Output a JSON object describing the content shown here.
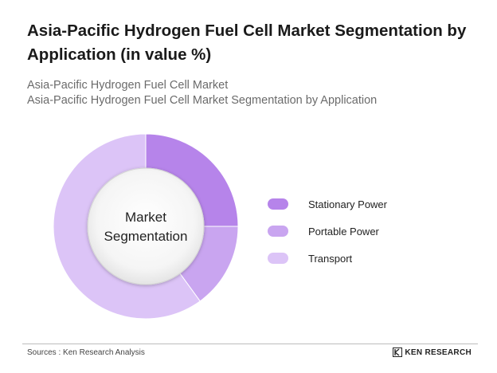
{
  "header": {
    "title": "Asia-Pacific Hydrogen Fuel Cell Market Segmentation by Application (in value %)",
    "subtitle_1": "Asia-Pacific Hydrogen Fuel Cell Market",
    "subtitle_2": "Asia-Pacific Hydrogen Fuel Cell Market Segmentation by Application"
  },
  "chart_data": {
    "type": "pie",
    "variant": "donut",
    "center_label": [
      "Market",
      "Segmentation"
    ],
    "categories": [
      "Stationary Power",
      "Portable Power",
      "Transport"
    ],
    "values": [
      25,
      15,
      60
    ],
    "colors": [
      "#b684ea",
      "#c9a5f0",
      "#dcc4f7"
    ],
    "legend_position": "right"
  },
  "footer": {
    "source": "Sources : Ken Research Analysis",
    "brand": "KEN RESEARCH"
  }
}
